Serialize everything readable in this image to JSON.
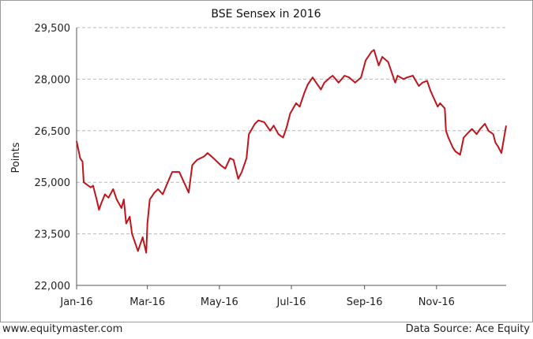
{
  "footer": {
    "website": "www.equitymaster.com",
    "source": "Data Source: Ace Equity"
  },
  "chart_data": {
    "type": "line",
    "title": "BSE Sensex in 2016",
    "xlabel": "",
    "ylabel": "Points",
    "ylim": [
      22000,
      29500
    ],
    "yticks": [
      "22,000",
      "23,500",
      "25,000",
      "26,500",
      "28,000",
      "29,500"
    ],
    "ytick_values": [
      22000,
      23500,
      25000,
      26500,
      28000,
      29500
    ],
    "xticks": [
      "Jan-16",
      "Mar-16",
      "May-16",
      "Jul-16",
      "Sep-16",
      "Nov-16"
    ],
    "xtick_values": [
      "2016-01-01",
      "2016-03-01",
      "2016-05-01",
      "2016-07-01",
      "2016-09-01",
      "2016-11-01"
    ],
    "xlim": [
      "2016-01-01",
      "2016-12-30"
    ],
    "grid": true,
    "color": "#c0141c",
    "series": [
      {
        "x": [
          "2016-01-01",
          "2016-01-04",
          "2016-01-06",
          "2016-01-07",
          "2016-01-11",
          "2016-01-13",
          "2016-01-15",
          "2016-01-18",
          "2016-01-20",
          "2016-01-22",
          "2016-01-25",
          "2016-01-28",
          "2016-02-01",
          "2016-02-04",
          "2016-02-08",
          "2016-02-10",
          "2016-02-12",
          "2016-02-15",
          "2016-02-17",
          "2016-02-19",
          "2016-02-22",
          "2016-02-24",
          "2016-02-26",
          "2016-02-29",
          "2016-03-01",
          "2016-03-03",
          "2016-03-07",
          "2016-03-10",
          "2016-03-14",
          "2016-03-17",
          "2016-03-22",
          "2016-03-28",
          "2016-04-01",
          "2016-04-05",
          "2016-04-08",
          "2016-04-12",
          "2016-04-18",
          "2016-04-21",
          "2016-04-26",
          "2016-04-29",
          "2016-05-02",
          "2016-05-06",
          "2016-05-10",
          "2016-05-13",
          "2016-05-17",
          "2016-05-20",
          "2016-05-24",
          "2016-05-26",
          "2016-05-31",
          "2016-06-03",
          "2016-06-08",
          "2016-06-13",
          "2016-06-16",
          "2016-06-20",
          "2016-06-24",
          "2016-06-27",
          "2016-06-30",
          "2016-07-05",
          "2016-07-08",
          "2016-07-12",
          "2016-07-15",
          "2016-07-19",
          "2016-07-22",
          "2016-07-26",
          "2016-07-29",
          "2016-08-03",
          "2016-08-05",
          "2016-08-10",
          "2016-08-15",
          "2016-08-19",
          "2016-08-24",
          "2016-08-29",
          "2016-09-02",
          "2016-09-07",
          "2016-09-09",
          "2016-09-13",
          "2016-09-16",
          "2016-09-21",
          "2016-09-23",
          "2016-09-27",
          "2016-09-29",
          "2016-10-04",
          "2016-10-07",
          "2016-10-12",
          "2016-10-17",
          "2016-10-20",
          "2016-10-24",
          "2016-10-27",
          "2016-11-02",
          "2016-11-04",
          "2016-11-08",
          "2016-11-09",
          "2016-11-11",
          "2016-11-15",
          "2016-11-17",
          "2016-11-21",
          "2016-11-24",
          "2016-11-28",
          "2016-12-01",
          "2016-12-05",
          "2016-12-08",
          "2016-12-12",
          "2016-12-15",
          "2016-12-19",
          "2016-12-21",
          "2016-12-23",
          "2016-12-26",
          "2016-12-28",
          "2016-12-30"
        ],
        "y": [
          26200,
          25700,
          25600,
          25000,
          24900,
          24850,
          24900,
          24500,
          24200,
          24400,
          24650,
          24550,
          24800,
          24500,
          24250,
          24500,
          23800,
          24000,
          23500,
          23300,
          23000,
          23200,
          23400,
          22950,
          23800,
          24500,
          24700,
          24800,
          24650,
          24900,
          25300,
          25300,
          25000,
          24700,
          25500,
          25650,
          25750,
          25850,
          25700,
          25600,
          25500,
          25400,
          25700,
          25650,
          25100,
          25300,
          25700,
          26400,
          26700,
          26800,
          26750,
          26500,
          26650,
          26400,
          26300,
          26600,
          27000,
          27300,
          27200,
          27600,
          27850,
          28050,
          27900,
          27700,
          27900,
          28050,
          28100,
          27900,
          28100,
          28050,
          27900,
          28050,
          28550,
          28800,
          28850,
          28400,
          28650,
          28500,
          28300,
          27900,
          28100,
          28000,
          28050,
          28100,
          27800,
          27900,
          27950,
          27650,
          27200,
          27300,
          27150,
          26500,
          26300,
          26000,
          25900,
          25800,
          26300,
          26450,
          26550,
          26400,
          26550,
          26700,
          26500,
          26400,
          26150,
          26050,
          25850,
          26250,
          26650
        ]
      }
    ]
  }
}
